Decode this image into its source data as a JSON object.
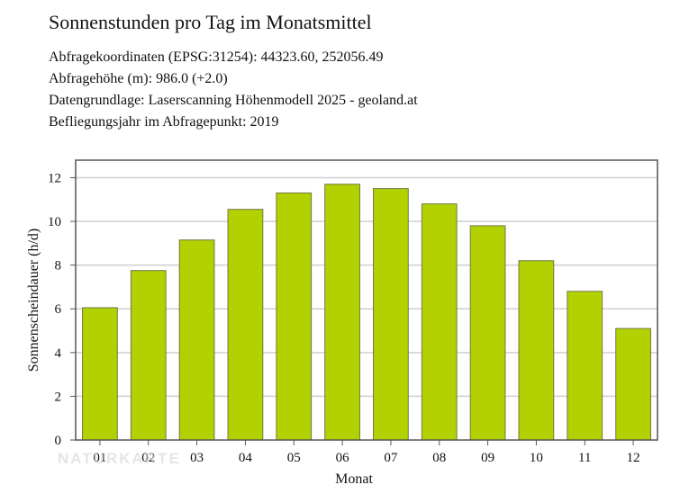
{
  "header": {
    "title": "Sonnenstunden pro Tag im Monatsmittel",
    "lines": [
      "Abfragekoordinaten (EPSG:31254): 44323.60, 252056.49",
      "Abfragehöhe (m): 986.0 (+2.0)",
      "Datengrundlage: Laserscanning Höhenmodell 2025 - geoland.at",
      "Befliegungsjahr im Abfragepunkt: 2019"
    ]
  },
  "watermark": "NATURKARTE",
  "chart_data": {
    "type": "bar",
    "categories": [
      "01",
      "02",
      "03",
      "04",
      "05",
      "06",
      "07",
      "08",
      "09",
      "10",
      "11",
      "12"
    ],
    "values": [
      6.05,
      7.75,
      9.15,
      10.55,
      11.3,
      11.7,
      11.5,
      10.8,
      9.8,
      8.2,
      6.8,
      5.1
    ],
    "xlabel": "Monat",
    "ylabel": "Sonnenscheindauer (h/d)",
    "ylim": [
      0,
      12.8
    ],
    "yticks": [
      0,
      2,
      4,
      6,
      8,
      10,
      12
    ],
    "grid": true,
    "colors": {
      "bar": "#b3d000",
      "bar_edge": "#6f7a45",
      "grid": "#cfcfcf",
      "frame": "#555555"
    }
  }
}
